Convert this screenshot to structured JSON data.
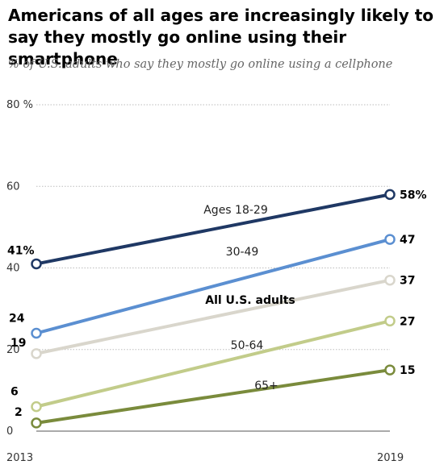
{
  "title": "Americans of all ages are increasingly likely to say they mostly go online using their smartphone",
  "subtitle": "% of U.S. adults who say they mostly go online using a cellphone",
  "chart_data": {
    "type": "line",
    "title": "Americans of all ages are increasingly likely to say they mostly go online using their smartphone",
    "subtitle": "% of U.S. adults who say they mostly go online using a cellphone",
    "x": [
      "2013",
      "2019"
    ],
    "ylim": [
      0,
      80
    ],
    "yticks": [
      0,
      20,
      40,
      60,
      80
    ],
    "ytick_labels": [
      "0",
      "20",
      "40",
      "60",
      "80 %"
    ],
    "grid": true,
    "series": [
      {
        "name": "Ages 18-29",
        "values": [
          41,
          58
        ],
        "start_label": "41%",
        "end_label": "58%",
        "color": "#1f3864"
      },
      {
        "name": "30-49",
        "values": [
          24,
          47
        ],
        "start_label": "24",
        "end_label": "47",
        "color": "#5b8fd1"
      },
      {
        "name": "All U.S. adults",
        "values": [
          19,
          37
        ],
        "start_label": "19",
        "end_label": "37",
        "color": "#d9d6cc"
      },
      {
        "name": "50-64",
        "values": [
          6,
          27
        ],
        "start_label": "6",
        "end_label": "27",
        "color": "#c2cc8a"
      },
      {
        "name": "65+",
        "values": [
          2,
          15
        ],
        "start_label": "2",
        "end_label": "15",
        "color": "#7a8b3c"
      }
    ]
  }
}
